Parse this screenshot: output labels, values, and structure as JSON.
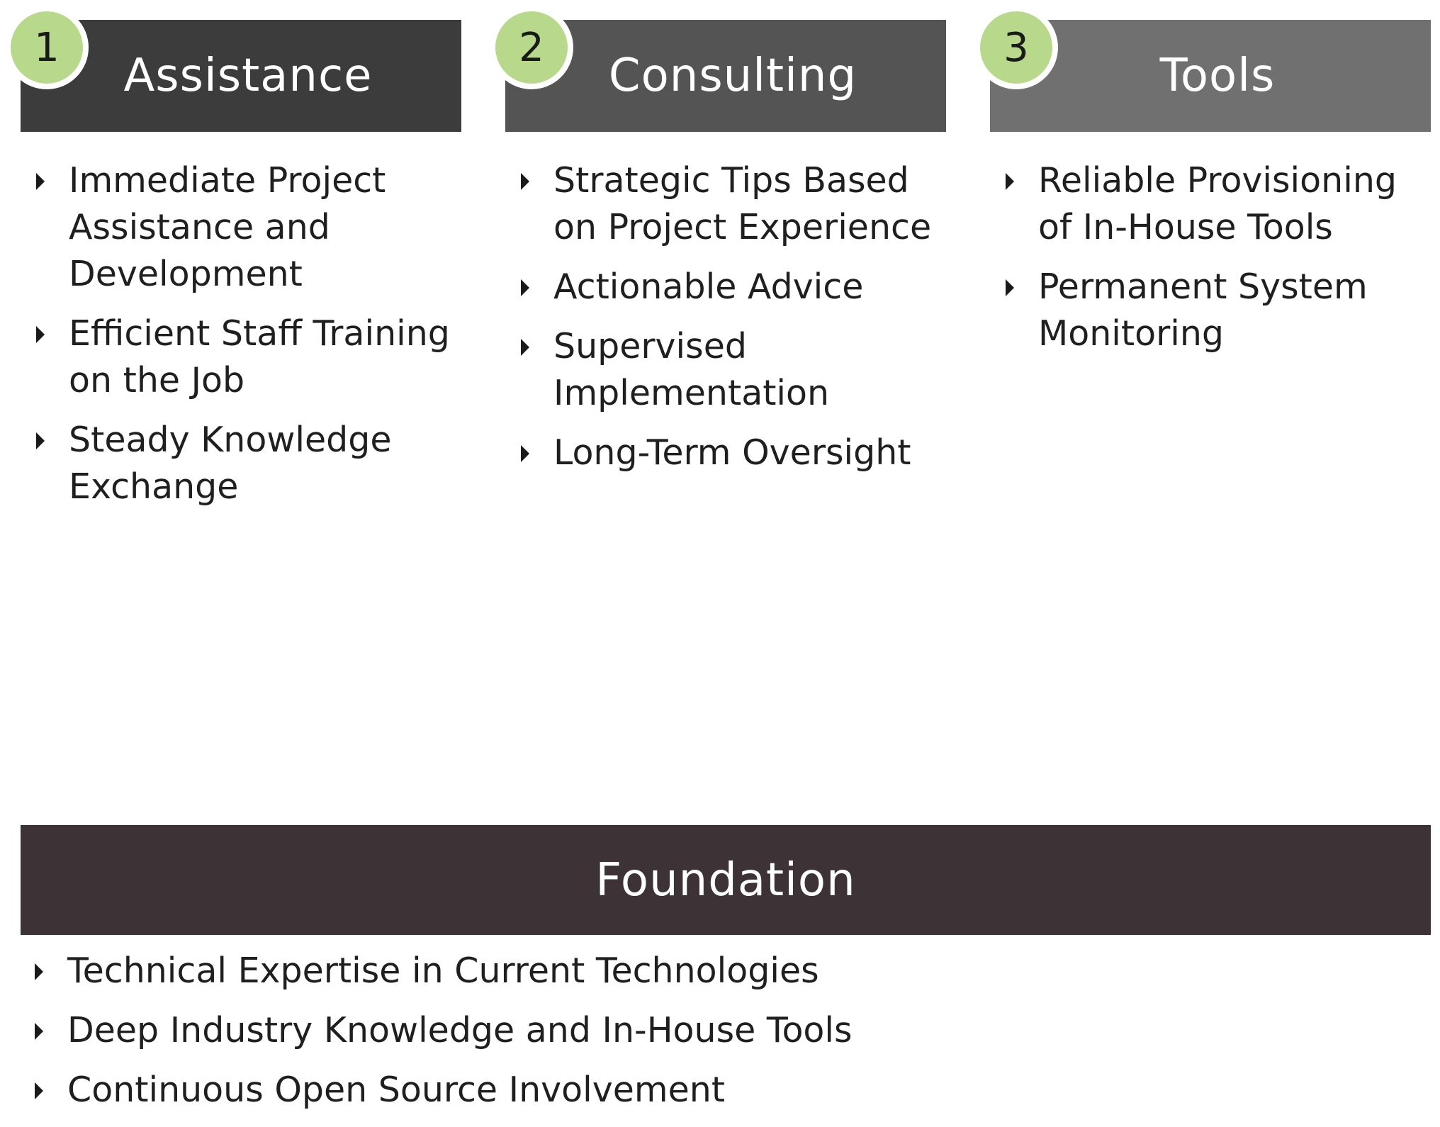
{
  "colors": {
    "badge": "#b8d98c",
    "header_1": "#3c3c3c",
    "header_2": "#545454",
    "header_3": "#707070",
    "foundation_header": "#3d3336",
    "text": "#1f1f1f"
  },
  "columns": [
    {
      "number": "1",
      "title": "Assistance",
      "items": [
        "Immediate Project Assistance and Development",
        "Efficient Staff Training on the Job",
        "Steady Knowledge Exchange"
      ]
    },
    {
      "number": "2",
      "title": "Consulting",
      "items": [
        "Strategic Tips Based on Project Experience",
        "Actionable Advice",
        "Supervised Implementation",
        "Long-Term Oversight"
      ]
    },
    {
      "number": "3",
      "title": "Tools",
      "items": [
        "Reliable Provisioning of In-House Tools",
        "Permanent System Monitoring"
      ]
    }
  ],
  "foundation": {
    "title": "Foundation",
    "items": [
      "Technical Expertise in Current Technologies",
      "Deep Industry Knowledge and In-House Tools",
      "Continuous Open Source Involvement"
    ]
  }
}
